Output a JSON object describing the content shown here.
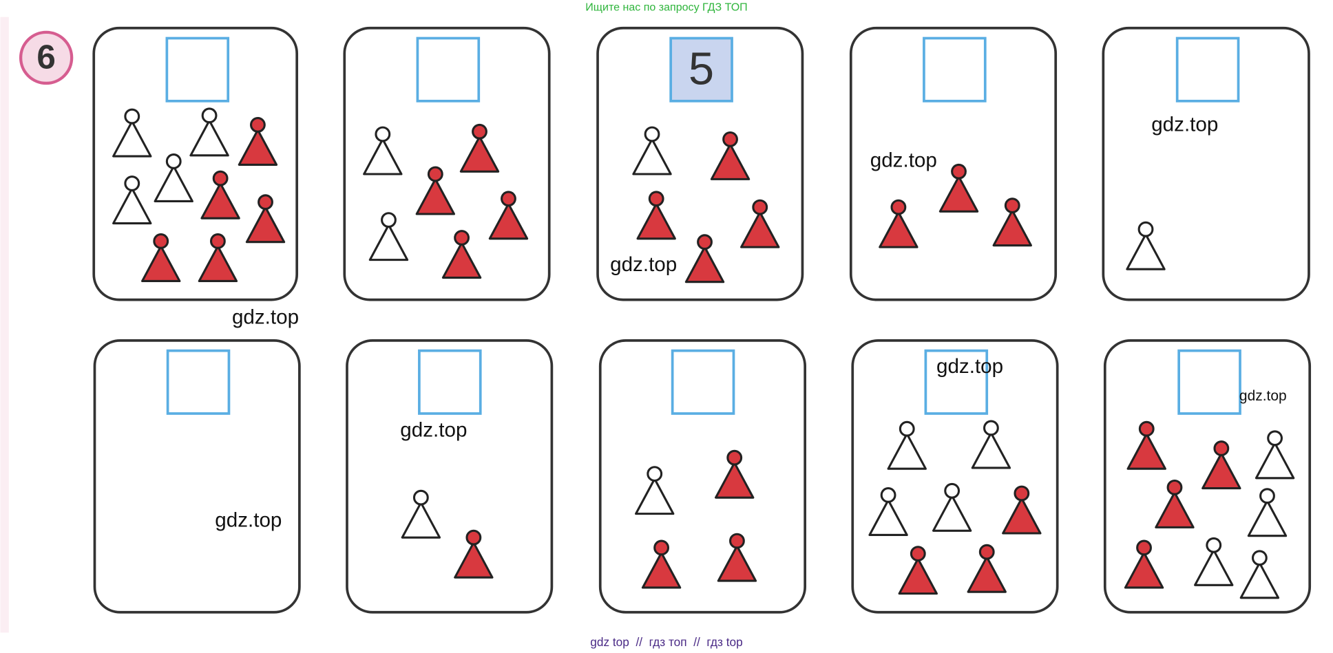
{
  "header": "Ищите нас по запросу ГДЗ ТОП",
  "task_number": "6",
  "number_box": "5",
  "watermarks": [
    "gdz.top",
    "gdz.top",
    "gdz.top",
    "gdz.top",
    "gdz.top",
    "gdz.top",
    "gdz.top",
    "gdz.top"
  ],
  "footer": "gdz top  //  гдз топ  //  гдз top"
}
